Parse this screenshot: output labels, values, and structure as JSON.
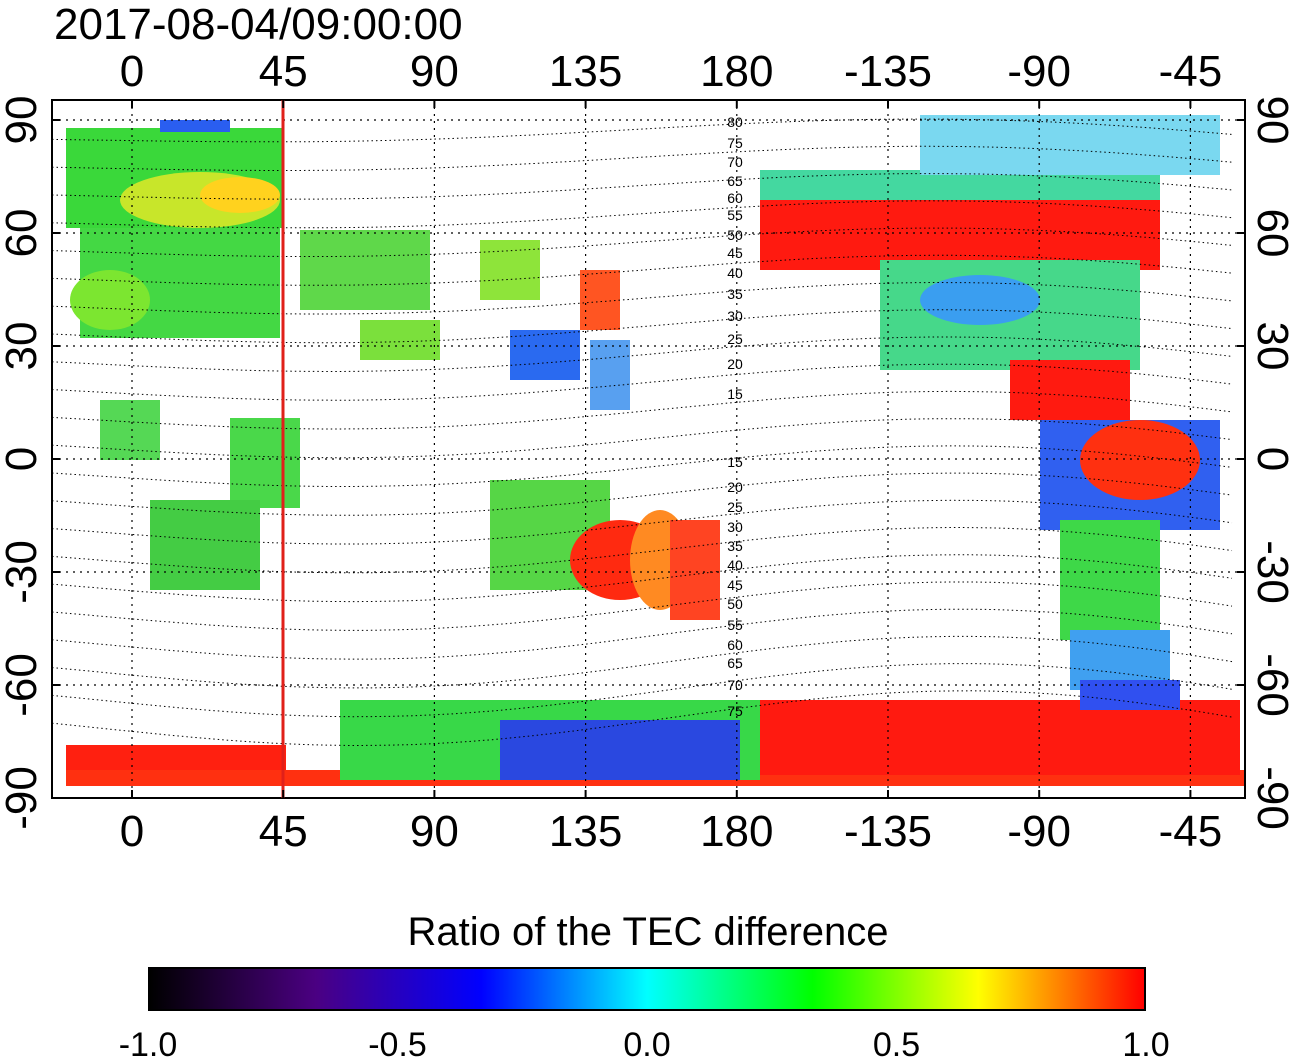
{
  "title": "2017-08-04/09:00:00",
  "map": {
    "lon_ticks": [
      "0",
      "45",
      "90",
      "135",
      "180",
      "-135",
      "-90",
      "-45"
    ],
    "lat_ticks": [
      "90",
      "60",
      "30",
      "0",
      "-30",
      "-60",
      "-90"
    ],
    "mlat_labels_north": [
      "80",
      "75",
      "70",
      "65",
      "60",
      "55",
      "50",
      "45",
      "40",
      "35",
      "30",
      "25",
      "20",
      "15"
    ],
    "mlat_labels_south": [
      "15",
      "20",
      "25",
      "30",
      "35",
      "40",
      "45",
      "50",
      "55",
      "60",
      "65",
      "70",
      "75"
    ],
    "meridian_line_lon": 45,
    "meridian_line_color": "#e0201a"
  },
  "colorbar": {
    "title": "Ratio of the TEC difference",
    "ticks": [
      "-1.0",
      "-0.5",
      "0.0",
      "0.5",
      "1.0"
    ],
    "colors": [
      "#000000",
      "#4b0082",
      "#0000ff",
      "#00ffff",
      "#00ff00",
      "#ffff00",
      "#ff0000"
    ]
  }
}
